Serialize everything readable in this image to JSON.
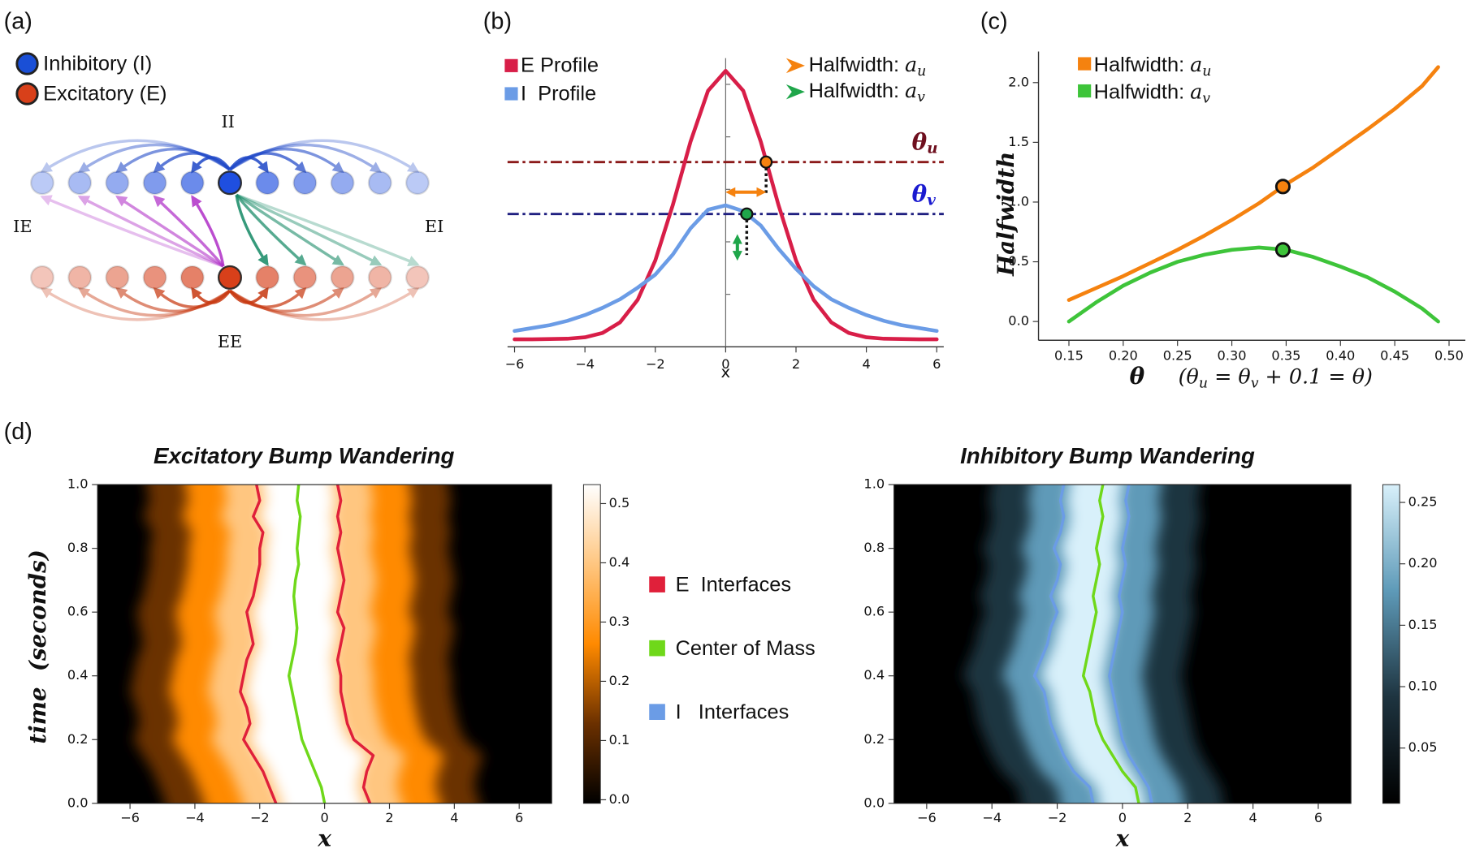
{
  "panel_labels": [
    "(a)",
    "(b)",
    "(c)",
    "(d)"
  ],
  "diagram": {
    "legend": [
      {
        "label": "Inhibitory (I)",
        "color": "#1a4fd6"
      },
      {
        "label": "Excitatory (E)",
        "color": "#d8401a"
      }
    ],
    "connection_labels": [
      {
        "text": "II",
        "color": "#1f48c8"
      },
      {
        "text": "IE",
        "color": "#b030c8"
      },
      {
        "text": "EI",
        "color": "#168a66"
      },
      {
        "text": "EE",
        "color": "#c83a12"
      }
    ],
    "inhibitory_color": "#1f4fe0",
    "excitatory_color": "#d8401a"
  },
  "legend": [
    {
      "label": "E  Interfaces",
      "color": "#e0203a"
    },
    {
      "label": "Center of Mass",
      "color": "#6fd81a"
    },
    {
      "label": "I   Interfaces",
      "color": "#6b9ce6"
    }
  ],
  "chart_data": [
    {
      "type": "line",
      "x": [
        -6,
        -5.5,
        -5,
        -4.5,
        -4,
        -3.5,
        -3,
        -2.5,
        -2,
        -1.5,
        -1,
        -0.5,
        0,
        0.5,
        1,
        1.5,
        2,
        2.5,
        3,
        3.5,
        4,
        4.5,
        5,
        5.5,
        6
      ],
      "series": [
        {
          "name": "E Profile",
          "color": "#d81e48",
          "values": [
            0.026,
            0.026,
            0.027,
            0.028,
            0.033,
            0.048,
            0.085,
            0.163,
            0.299,
            0.492,
            0.71,
            0.887,
            0.956,
            0.887,
            0.71,
            0.492,
            0.299,
            0.163,
            0.085,
            0.048,
            0.033,
            0.028,
            0.027,
            0.026,
            0.026
          ]
        },
        {
          "name": "I  Profile",
          "color": "#6b9ce6",
          "values": [
            0.055,
            0.065,
            0.075,
            0.09,
            0.11,
            0.135,
            0.165,
            0.205,
            0.25,
            0.32,
            0.41,
            0.475,
            0.49,
            0.47,
            0.42,
            0.34,
            0.27,
            0.21,
            0.165,
            0.135,
            0.11,
            0.09,
            0.075,
            0.065,
            0.055
          ]
        }
      ],
      "xlim": [
        -6.2,
        6.2
      ],
      "ylim": [
        0,
        1
      ],
      "xticks": [
        {
          "value": -6,
          "label": "−6"
        },
        {
          "value": -4,
          "label": "−4"
        },
        {
          "value": -2,
          "label": "−2"
        },
        0,
        2,
        4,
        6
      ],
      "xlabel": "x",
      "thresholds": [
        {
          "name": "θ",
          "sub": "u",
          "value": 0.64,
          "color": "#6e0f1e",
          "line_color": "#8b1a1a"
        },
        {
          "name": "θ",
          "sub": "v",
          "value": 0.46,
          "color": "#1a1ad0",
          "line_color": "#1f1f80"
        }
      ],
      "markers": [
        {
          "label": "Halfwidth:",
          "math": "a",
          "sub": "u",
          "color": "#f5820f",
          "x": 1.15,
          "y": 0.64
        },
        {
          "label": "Halfwidth:",
          "math": "a",
          "sub": "v",
          "color": "#1fa64a",
          "x": 0.6,
          "y": 0.46
        }
      ]
    },
    {
      "type": "line",
      "x": [
        0.15,
        0.175,
        0.2,
        0.225,
        0.25,
        0.275,
        0.3,
        0.325,
        0.35,
        0.375,
        0.4,
        0.425,
        0.45,
        0.475,
        0.49
      ],
      "series": [
        {
          "name": "Halfwidth:",
          "math": "a",
          "sub": "u",
          "color": "#f5820f",
          "values": [
            0.18,
            0.28,
            0.38,
            0.49,
            0.6,
            0.72,
            0.85,
            0.99,
            1.15,
            1.29,
            1.45,
            1.61,
            1.78,
            1.97,
            2.13
          ]
        },
        {
          "name": "Halfwidth:",
          "math": "a",
          "sub": "v",
          "color": "#3ec43a",
          "values": [
            0.0,
            0.16,
            0.3,
            0.41,
            0.5,
            0.56,
            0.6,
            0.62,
            0.6,
            0.54,
            0.46,
            0.37,
            0.25,
            0.11,
            0.0
          ]
        }
      ],
      "markers": [
        {
          "x": 0.347,
          "y": 1.13
        },
        {
          "x": 0.347,
          "y": 0.6
        }
      ],
      "xlim": [
        0.122,
        0.515
      ],
      "ylim": [
        -0.157,
        2.26
      ],
      "xticks": [
        0.15,
        {
          "value": 0.2,
          "label": "0.20"
        },
        0.25,
        {
          "value": 0.3,
          "label": "0.30"
        },
        0.35,
        {
          "value": 0.4,
          "label": "0.40"
        },
        0.45,
        {
          "value": 0.5,
          "label": "0.50"
        }
      ],
      "yticks": [
        {
          "value": 0,
          "label": "0.0"
        },
        0.5,
        {
          "value": 1,
          "label": "1.0"
        },
        1.5,
        {
          "value": 2,
          "label": "2.0"
        }
      ],
      "xlabel": {
        "symbol": "θ",
        "note": [
          "(θ",
          "u",
          " = θ",
          "v",
          " + 0.1 = θ)"
        ]
      },
      "ylabel": "Halfwidth"
    },
    {
      "type": "heatmap",
      "title": "Excitatory Bump Wandering",
      "xlabel": "x",
      "ylabel": "time  (seconds)",
      "y": [
        0,
        0.05,
        0.1,
        0.15,
        0.2,
        0.25,
        0.3,
        0.35,
        0.4,
        0.45,
        0.5,
        0.55,
        0.6,
        0.65,
        0.7,
        0.75,
        0.8,
        0.85,
        0.9,
        0.95,
        1.0
      ],
      "interfaces": [
        [
          -1.5,
          -1.7,
          -1.9,
          -2.2,
          -2.5,
          -2.3,
          -2.4,
          -2.6,
          -2.5,
          -2.4,
          -2.2,
          -2.3,
          -2.4,
          -2.2,
          -2.1,
          -2.0,
          -2.0,
          -1.9,
          -2.2,
          -2.0,
          -2.1
        ],
        [
          1.4,
          1.2,
          1.3,
          1.5,
          0.9,
          0.7,
          0.6,
          0.5,
          0.5,
          0.4,
          0.5,
          0.6,
          0.4,
          0.5,
          0.6,
          0.5,
          0.4,
          0.5,
          0.4,
          0.5,
          0.4
        ]
      ],
      "center_of_mass": [
        0,
        -0.1,
        -0.3,
        -0.5,
        -0.7,
        -0.8,
        -0.9,
        -1.0,
        -1.1,
        -1.0,
        -0.9,
        -0.85,
        -0.9,
        -0.95,
        -0.9,
        -0.8,
        -0.85,
        -0.8,
        -0.75,
        -0.85,
        -0.8
      ],
      "xlim": [
        -7,
        7
      ],
      "ylim": [
        0,
        1
      ],
      "xticks": [
        {
          "value": -6,
          "label": "−6"
        },
        {
          "value": -4,
          "label": "−4"
        },
        {
          "value": -2,
          "label": "−2"
        },
        0,
        2,
        4,
        6
      ],
      "yticks": [
        {
          "value": 0,
          "label": "0.0"
        },
        0.2,
        0.4,
        0.6,
        0.8,
        {
          "value": 1,
          "label": "1.0"
        }
      ],
      "clim": [
        -0.006,
        0.532
      ],
      "cticks": [
        {
          "value": 0,
          "label": "0.0"
        },
        0.1,
        0.2,
        0.3,
        0.4,
        0.5
      ],
      "colormap": [
        "#000000",
        "#6b3000",
        "#ff8a00",
        "#ffc680",
        "#ffffff"
      ]
    },
    {
      "type": "heatmap",
      "title": "Inhibitory Bump Wandering",
      "xlabel": "x",
      "y": [
        0,
        0.05,
        0.1,
        0.15,
        0.2,
        0.25,
        0.3,
        0.35,
        0.4,
        0.45,
        0.5,
        0.55,
        0.6,
        0.65,
        0.7,
        0.75,
        0.8,
        0.85,
        0.9,
        0.95,
        1.0
      ],
      "interfaces": [
        [
          -0.9,
          -1.0,
          -1.5,
          -1.8,
          -2.0,
          -2.2,
          -2.3,
          -2.4,
          -2.7,
          -2.5,
          -2.3,
          -2.2,
          -2.0,
          -2.2,
          -2.0,
          -1.9,
          -2.1,
          -1.9,
          -1.8,
          -1.9,
          -1.8
        ],
        [
          0.9,
          0.8,
          0.5,
          0.2,
          0.0,
          -0.1,
          -0.2,
          -0.3,
          -0.4,
          -0.3,
          -0.2,
          -0.1,
          0.0,
          -0.1,
          0.0,
          0.1,
          0.0,
          0.1,
          0.2,
          0.1,
          0.2
        ]
      ],
      "center_of_mass": [
        0.5,
        0.4,
        0.0,
        -0.3,
        -0.6,
        -0.8,
        -0.9,
        -1.0,
        -1.2,
        -1.1,
        -1.0,
        -0.9,
        -0.8,
        -0.9,
        -0.8,
        -0.7,
        -0.8,
        -0.7,
        -0.6,
        -0.7,
        -0.6
      ],
      "xlim": [
        -7,
        7
      ],
      "ylim": [
        0,
        1
      ],
      "xticks": [
        {
          "value": -6,
          "label": "−6"
        },
        {
          "value": -4,
          "label": "−4"
        },
        {
          "value": -2,
          "label": "−2"
        },
        0,
        2,
        4,
        6
      ],
      "yticks": [
        {
          "value": 0,
          "label": "0.0"
        },
        0.2,
        0.4,
        0.6,
        0.8,
        {
          "value": 1,
          "label": "1.0"
        }
      ],
      "clim": [
        0.005,
        0.2645
      ],
      "cticks": [
        0.05,
        {
          "value": 0.1,
          "label": "0.10"
        },
        0.15,
        {
          "value": 0.2,
          "label": "0.20"
        },
        0.25
      ],
      "colormap": [
        "#000000",
        "#1e3440",
        "#5e9ab8",
        "#d8f0fa"
      ]
    }
  ]
}
